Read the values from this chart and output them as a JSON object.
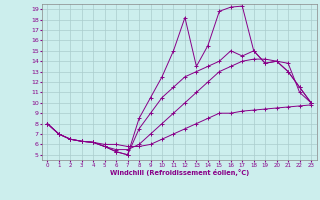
{
  "xlabel": "Windchill (Refroidissement éolien,°C)",
  "background_color": "#cceeed",
  "line_color": "#880088",
  "grid_color": "#aacccc",
  "xlim": [
    -0.5,
    23.5
  ],
  "ylim": [
    4.5,
    19.5
  ],
  "yticks": [
    5,
    6,
    7,
    8,
    9,
    10,
    11,
    12,
    13,
    14,
    15,
    16,
    17,
    18,
    19
  ],
  "xticks": [
    0,
    1,
    2,
    3,
    4,
    5,
    6,
    7,
    8,
    9,
    10,
    11,
    12,
    13,
    14,
    15,
    16,
    17,
    18,
    19,
    20,
    21,
    22,
    23
  ],
  "lines": [
    {
      "x": [
        0,
        1,
        2,
        3,
        4,
        5,
        6,
        7,
        8,
        9,
        10,
        11,
        12,
        13,
        14,
        15,
        16,
        17,
        18,
        19,
        20,
        21,
        22,
        23
      ],
      "y": [
        8,
        7,
        6.5,
        6.3,
        6.2,
        5.8,
        5.3,
        5.0,
        8.5,
        10.5,
        12.5,
        15.0,
        18.2,
        13.5,
        15.5,
        18.8,
        19.2,
        19.3,
        15.0,
        13.8,
        14.0,
        13.0,
        11.5,
        10.0
      ]
    },
    {
      "x": [
        0,
        1,
        2,
        3,
        4,
        5,
        6,
        7,
        8,
        9,
        10,
        11,
        12,
        13,
        14,
        15,
        16,
        17,
        18,
        19,
        20,
        21,
        22,
        23
      ],
      "y": [
        8,
        7,
        6.5,
        6.3,
        6.2,
        5.8,
        5.3,
        5.0,
        7.5,
        9.0,
        10.5,
        11.5,
        12.5,
        13.0,
        13.5,
        14.0,
        15.0,
        14.5,
        15.0,
        13.8,
        14.0,
        13.0,
        11.5,
        10.0
      ]
    },
    {
      "x": [
        0,
        1,
        2,
        3,
        4,
        5,
        6,
        7,
        8,
        9,
        10,
        11,
        12,
        13,
        14,
        15,
        16,
        17,
        18,
        19,
        20,
        21,
        22,
        23
      ],
      "y": [
        8,
        7,
        6.5,
        6.3,
        6.2,
        5.8,
        5.5,
        5.5,
        6.0,
        7.0,
        8.0,
        9.0,
        10.0,
        11.0,
        12.0,
        13.0,
        13.5,
        14.0,
        14.2,
        14.2,
        14.0,
        13.8,
        11.0,
        10.0
      ]
    },
    {
      "x": [
        0,
        1,
        2,
        3,
        4,
        5,
        6,
        7,
        8,
        9,
        10,
        11,
        12,
        13,
        14,
        15,
        16,
        17,
        18,
        19,
        20,
        21,
        22,
        23
      ],
      "y": [
        8,
        7,
        6.5,
        6.3,
        6.2,
        6.0,
        6.0,
        5.8,
        5.8,
        6.0,
        6.5,
        7.0,
        7.5,
        8.0,
        8.5,
        9.0,
        9.0,
        9.2,
        9.3,
        9.4,
        9.5,
        9.6,
        9.7,
        9.8
      ]
    }
  ]
}
